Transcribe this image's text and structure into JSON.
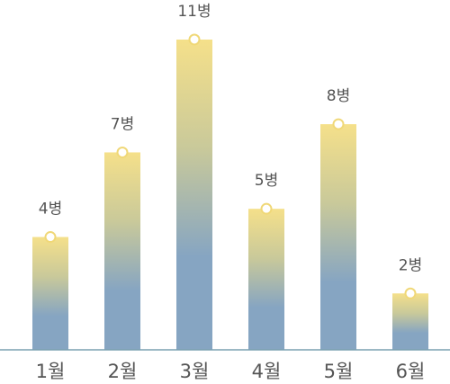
{
  "chart_data": {
    "type": "bar",
    "categories": [
      "1월",
      "2월",
      "3월",
      "4월",
      "5월",
      "6월"
    ],
    "values": [
      4,
      7,
      11,
      5,
      8,
      2
    ],
    "data_labels": [
      "4병",
      "7병",
      "11병",
      "5병",
      "8병",
      "2병"
    ],
    "title": "",
    "xlabel": "",
    "ylabel": "",
    "ylim": [
      0,
      11
    ],
    "grid": false,
    "legend": "none",
    "colors": {
      "bar_top": "#f5e08a",
      "bar_bottom": "#86a5c2",
      "axis": "#7aa0b0",
      "marker_stroke": "#f0d878",
      "marker_fill": "#ffffff",
      "text": "#555555"
    }
  }
}
